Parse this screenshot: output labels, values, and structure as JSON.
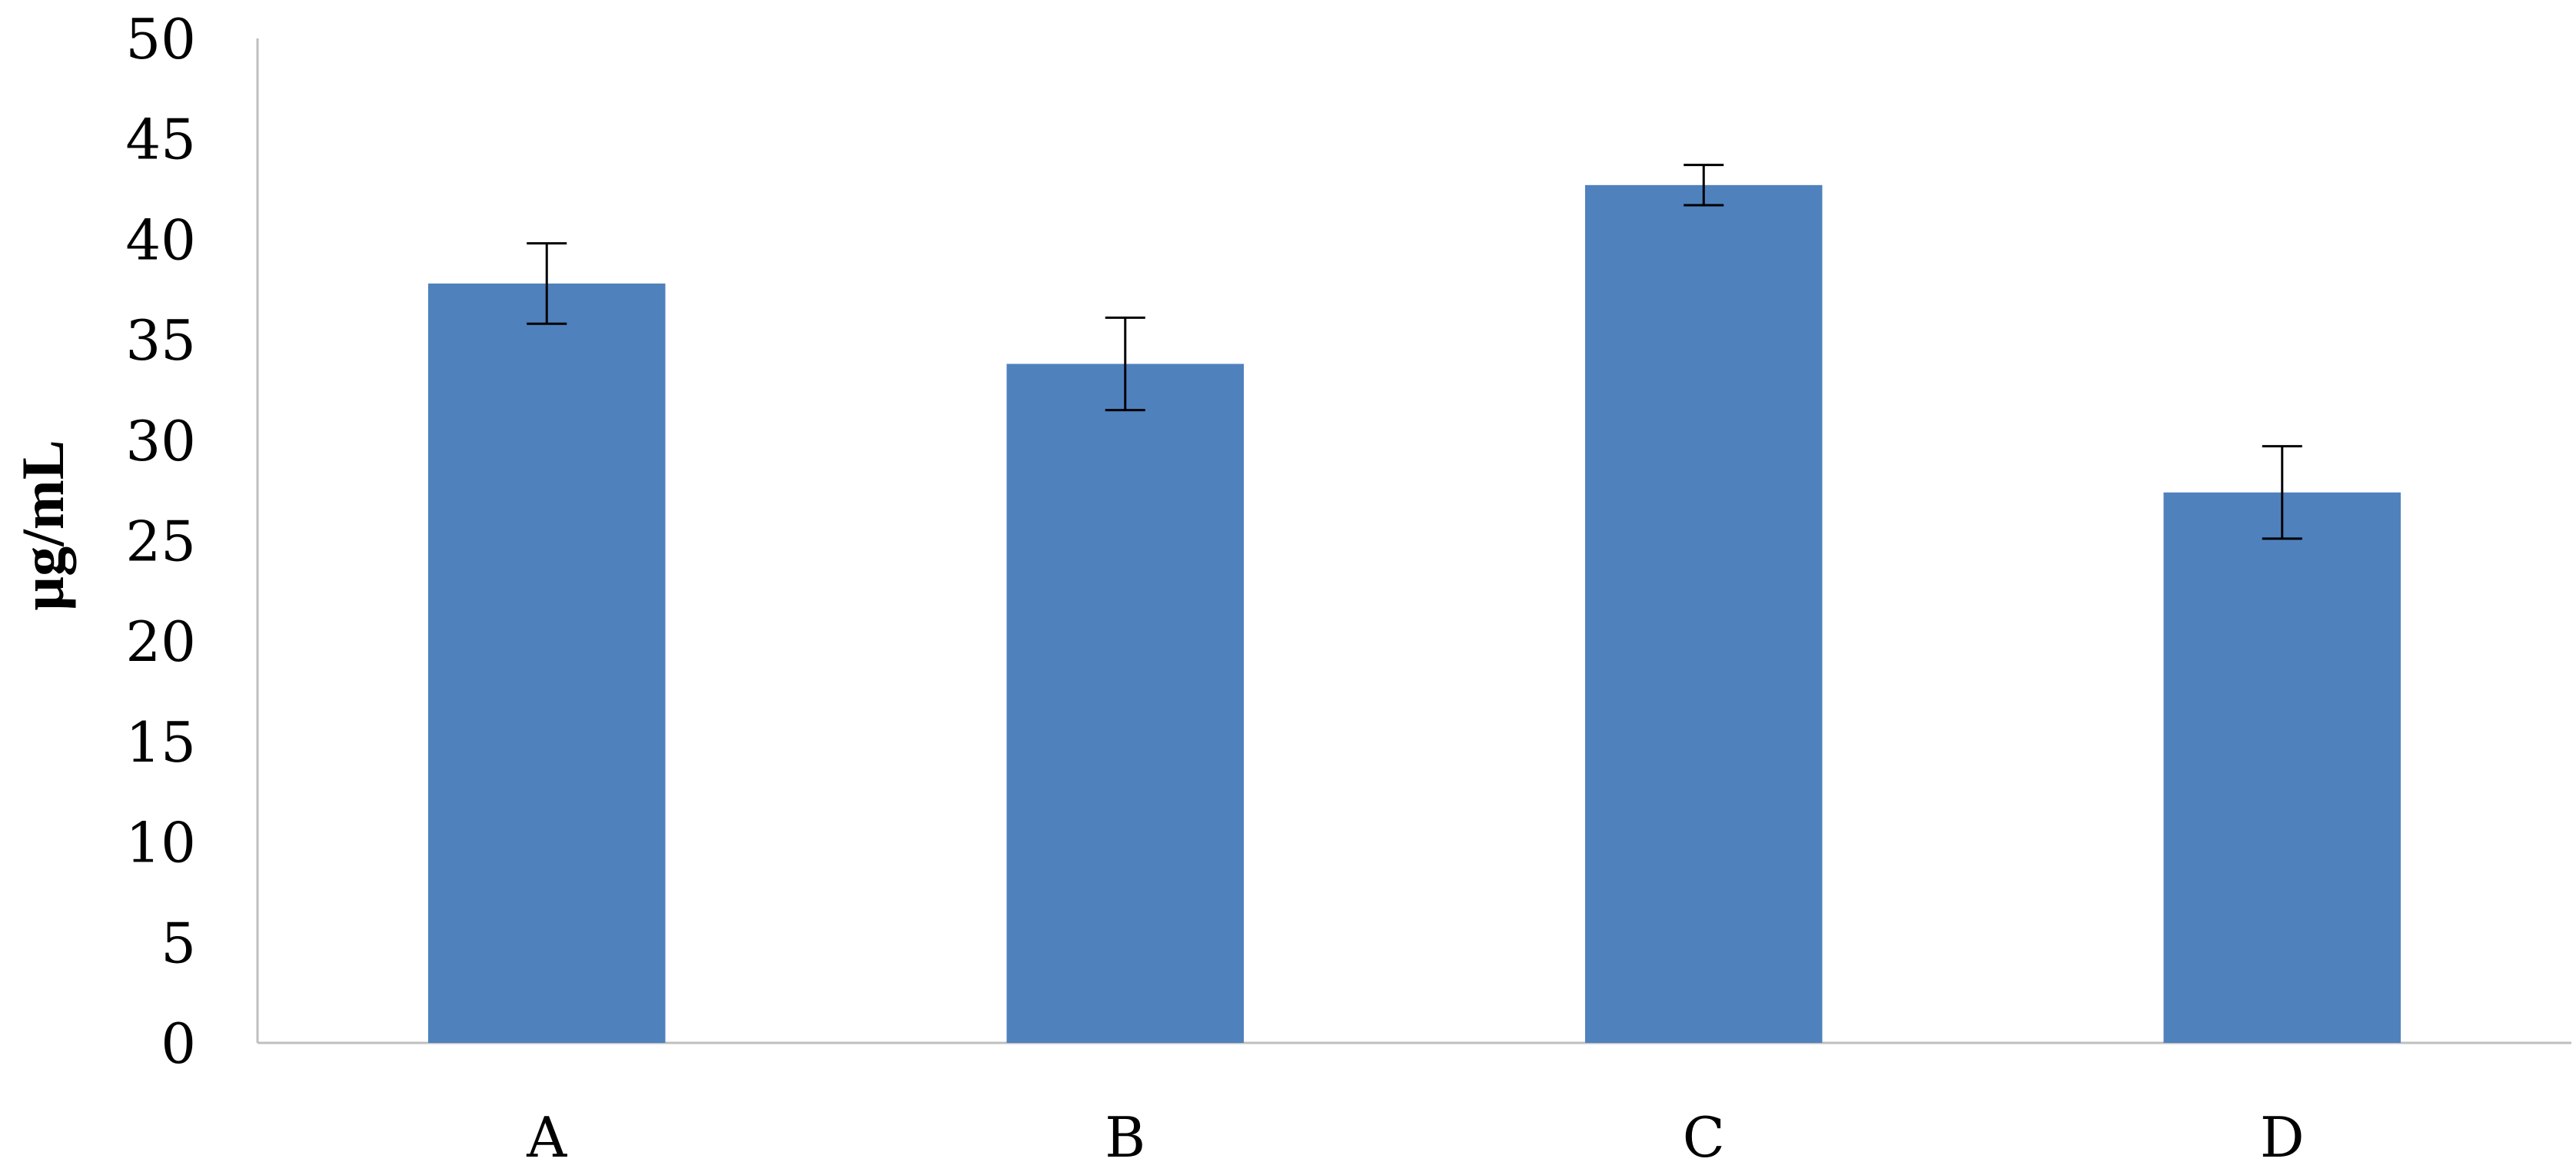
{
  "chart_data": {
    "type": "bar",
    "title": "",
    "xlabel": "",
    "ylabel": "µg/mL",
    "categories": [
      "A",
      "B",
      "C",
      "D"
    ],
    "values": [
      37.8,
      33.8,
      42.7,
      27.4
    ],
    "error": [
      2.0,
      2.3,
      1.0,
      2.3
    ],
    "ylim": [
      0,
      50
    ],
    "yticks": [
      "0",
      "5",
      "10",
      "15",
      "20",
      "25",
      "30",
      "35",
      "40",
      "45",
      "50"
    ],
    "grid": false,
    "legend": "none",
    "bar_color": "#4F81BD",
    "axis_color": "#BFBFBF",
    "error_color": "#000000"
  }
}
